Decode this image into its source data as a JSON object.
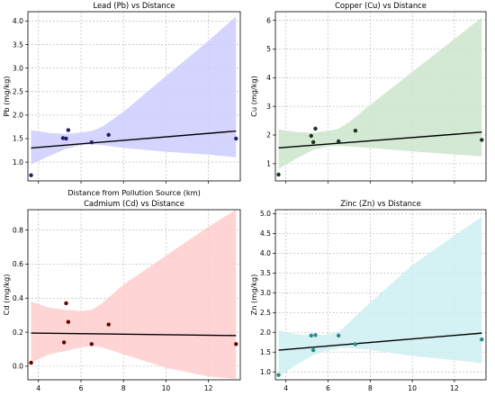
{
  "chart_data": [
    {
      "type": "scatter",
      "title": "Lead (Pb) vs Distance",
      "xlabel": "Distance from Pollution Source (km)",
      "ylabel": "Pb (mg/kg)",
      "xlim": [
        3.5,
        13.5
      ],
      "ylim": [
        0.6,
        4.2
      ],
      "xticks": [
        4,
        6,
        8,
        10,
        12
      ],
      "yticks": [
        1.0,
        1.5,
        2.0,
        2.5,
        3.0,
        3.5,
        4.0
      ],
      "ytick_labels": [
        "1.0",
        "1.5",
        "2.0",
        "2.5",
        "3.0",
        "3.5",
        "4.0"
      ],
      "show_xticklabels": false,
      "grid": true,
      "colors": {
        "point": "#1f1f66",
        "band": "#ccccff",
        "line": "#000000"
      },
      "points": {
        "x": [
          3.65,
          5.15,
          5.3,
          5.4,
          6.5,
          7.3,
          13.3
        ],
        "y": [
          0.72,
          1.51,
          1.5,
          1.68,
          1.42,
          1.58,
          1.5
        ]
      },
      "fit": {
        "x": [
          3.65,
          13.3
        ],
        "y": [
          1.3,
          1.66
        ]
      },
      "band": {
        "x": [
          3.65,
          4.5,
          5.3,
          6.0,
          6.5,
          7.0,
          8.0,
          10.0,
          12.0,
          13.3
        ],
        "upper": [
          1.68,
          1.62,
          1.6,
          1.63,
          1.66,
          1.75,
          2.07,
          2.83,
          3.58,
          4.1
        ],
        "lower": [
          0.95,
          1.13,
          1.28,
          1.36,
          1.38,
          1.36,
          1.3,
          1.22,
          1.16,
          1.1
        ]
      }
    },
    {
      "type": "scatter",
      "title": "Copper (Cu) vs Distance",
      "xlabel": "",
      "ylabel": "Cu (mg/kg)",
      "xlim": [
        3.5,
        13.5
      ],
      "ylim": [
        0.4,
        6.3
      ],
      "xticks": [
        4,
        6,
        8,
        10,
        12
      ],
      "yticks": [
        1,
        2,
        3,
        4,
        5,
        6
      ],
      "ytick_labels": [
        "1",
        "2",
        "3",
        "4",
        "5",
        "6"
      ],
      "show_xticklabels": false,
      "grid": true,
      "colors": {
        "point": "#1a331a",
        "band": "#cce5cc",
        "line": "#000000"
      },
      "points": {
        "x": [
          3.65,
          5.2,
          5.3,
          5.4,
          6.5,
          7.3,
          13.3
        ],
        "y": [
          0.62,
          1.97,
          1.75,
          2.22,
          1.78,
          2.15,
          1.83
        ]
      },
      "fit": {
        "x": [
          3.65,
          13.3
        ],
        "y": [
          1.55,
          2.1
        ]
      },
      "band": {
        "x": [
          3.65,
          4.5,
          5.3,
          6.0,
          6.5,
          7.0,
          8.0,
          10.0,
          12.0,
          13.3
        ],
        "upper": [
          2.2,
          2.1,
          2.08,
          2.15,
          2.22,
          2.45,
          3.05,
          4.2,
          5.35,
          6.1
        ],
        "lower": [
          0.82,
          1.18,
          1.48,
          1.6,
          1.62,
          1.6,
          1.55,
          1.43,
          1.32,
          1.25
        ]
      }
    },
    {
      "type": "scatter",
      "title": "Cadmium (Cd) vs Distance",
      "xlabel": "Distance from Pollution Source (km)",
      "ylabel": "Cd (mg/kg)",
      "xlim": [
        3.5,
        13.5
      ],
      "ylim": [
        -0.08,
        0.92
      ],
      "xticks": [
        4,
        6,
        8,
        10,
        12
      ],
      "yticks": [
        0.0,
        0.2,
        0.4,
        0.6,
        0.8
      ],
      "ytick_labels": [
        "0.0",
        "0.2",
        "0.4",
        "0.6",
        "0.8"
      ],
      "show_xticklabels": true,
      "grid": true,
      "colors": {
        "point": "#660000",
        "band": "#ffcccc",
        "line": "#000000"
      },
      "points": {
        "x": [
          3.65,
          5.2,
          5.3,
          5.4,
          6.5,
          7.3,
          13.3
        ],
        "y": [
          0.02,
          0.14,
          0.37,
          0.26,
          0.13,
          0.245,
          0.13
        ]
      },
      "fit": {
        "x": [
          3.65,
          13.3
        ],
        "y": [
          0.195,
          0.18
        ]
      },
      "band": {
        "x": [
          3.65,
          4.5,
          5.3,
          6.0,
          6.5,
          7.0,
          8.0,
          10.0,
          12.0,
          13.3
        ],
        "upper": [
          0.38,
          0.345,
          0.33,
          0.325,
          0.33,
          0.37,
          0.48,
          0.65,
          0.82,
          0.92
        ],
        "lower": [
          0.02,
          0.07,
          0.09,
          0.11,
          0.12,
          0.11,
          0.07,
          -0.01,
          -0.06,
          -0.075
        ]
      }
    },
    {
      "type": "scatter",
      "title": "Zinc (Zn) vs Distance",
      "xlabel": "Distance from Pollution Source (km)",
      "ylabel": "Zn (mg/kg)",
      "xlim": [
        3.5,
        13.5
      ],
      "ylim": [
        0.8,
        5.1
      ],
      "xticks": [
        4,
        6,
        8,
        10,
        12
      ],
      "yticks": [
        1.0,
        1.5,
        2.0,
        2.5,
        3.0,
        3.5,
        4.0,
        4.5,
        5.0
      ],
      "ytick_labels": [
        "1.0",
        "1.5",
        "2.0",
        "2.5",
        "3.0",
        "3.5",
        "4.0",
        "4.5",
        "5.0"
      ],
      "show_xticklabels": true,
      "grid": true,
      "colors": {
        "point": "#2a8a8a",
        "band": "#cdeff2",
        "line": "#000000"
      },
      "points": {
        "x": [
          3.65,
          5.2,
          5.3,
          5.4,
          6.5,
          7.3,
          13.3
        ],
        "y": [
          0.92,
          1.92,
          1.55,
          1.93,
          1.92,
          1.7,
          1.82
        ]
      },
      "fit": {
        "x": [
          3.65,
          13.3
        ],
        "y": [
          1.55,
          1.98
        ]
      },
      "band": {
        "x": [
          3.65,
          4.5,
          5.3,
          6.0,
          6.5,
          7.0,
          8.0,
          10.0,
          12.0,
          13.3
        ],
        "upper": [
          2.05,
          1.95,
          1.92,
          1.95,
          2.0,
          2.25,
          2.75,
          3.7,
          4.45,
          4.92
        ],
        "lower": [
          0.88,
          1.18,
          1.42,
          1.55,
          1.6,
          1.6,
          1.56,
          1.4,
          1.3,
          1.22
        ]
      }
    }
  ]
}
